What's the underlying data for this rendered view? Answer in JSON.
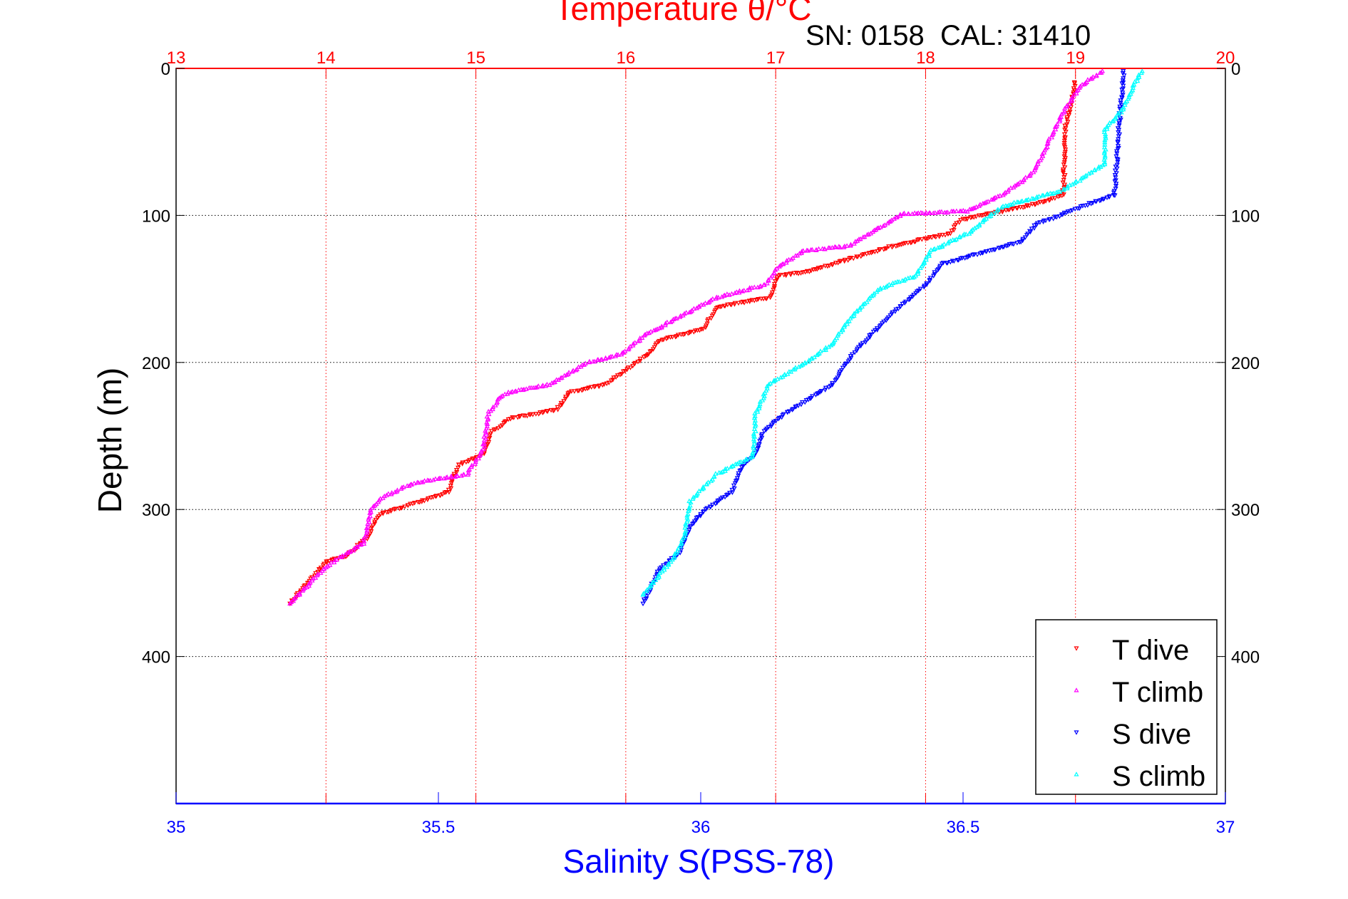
{
  "chart_data": {
    "type": "scatter",
    "title": "Temperature θ/°C",
    "subtitle": "SN: 0158  CAL: 31410",
    "ylabel": "Depth (m)",
    "xlabel": "Salinity S(PSS-78)",
    "ylim": [
      0,
      500
    ],
    "y_reversed": true,
    "yticks": [
      0,
      100,
      200,
      300,
      400
    ],
    "ytick_labels": [
      "0",
      "100",
      "200",
      "300",
      "400"
    ],
    "temperature_axis": {
      "position": "top",
      "lim": [
        13,
        20
      ],
      "ticks": [
        "13",
        "14",
        "15",
        "16",
        "17",
        "18",
        "19",
        "20"
      ],
      "color": "#ff0000"
    },
    "salinity_axis": {
      "position": "bottom",
      "lim": [
        35,
        37
      ],
      "ticks": [
        "35",
        "35.5",
        "36",
        "36.5",
        "37"
      ],
      "color": "#0000ff"
    },
    "grid": true,
    "legend_position": "bottom-right",
    "series": [
      {
        "name": "T dive",
        "axis": "temperature",
        "color": "#ff0000",
        "marker": "triangle-down",
        "points": [
          [
            19.0,
            9
          ],
          [
            18.93,
            42
          ],
          [
            18.92,
            86
          ],
          [
            18.74,
            92
          ],
          [
            18.23,
            103
          ],
          [
            18.17,
            112
          ],
          [
            17.77,
            121
          ],
          [
            17.48,
            130
          ],
          [
            17.22,
            138
          ],
          [
            17.02,
            141
          ],
          [
            16.96,
            156
          ],
          [
            16.61,
            162
          ],
          [
            16.52,
            177
          ],
          [
            16.23,
            185
          ],
          [
            16.15,
            194
          ],
          [
            16.03,
            203
          ],
          [
            15.86,
            215
          ],
          [
            15.63,
            220
          ],
          [
            15.54,
            232
          ],
          [
            15.23,
            238
          ],
          [
            15.11,
            247
          ],
          [
            15.05,
            262
          ],
          [
            14.88,
            270
          ],
          [
            14.82,
            288
          ],
          [
            14.65,
            294
          ],
          [
            14.36,
            303
          ],
          [
            14.27,
            320
          ],
          [
            14.13,
            332
          ],
          [
            14.01,
            335
          ],
          [
            13.9,
            347
          ],
          [
            13.76,
            364
          ]
        ]
      },
      {
        "name": "T climb",
        "axis": "temperature",
        "color": "#ff00ff",
        "marker": "triangle-up",
        "points": [
          [
            19.18,
            2
          ],
          [
            19.03,
            12
          ],
          [
            18.92,
            30
          ],
          [
            18.83,
            48
          ],
          [
            18.72,
            71
          ],
          [
            18.51,
            86
          ],
          [
            18.28,
            97
          ],
          [
            17.85,
            99
          ],
          [
            17.68,
            109
          ],
          [
            17.48,
            121
          ],
          [
            17.19,
            124
          ],
          [
            17.02,
            135
          ],
          [
            16.93,
            147
          ],
          [
            16.61,
            156
          ],
          [
            16.32,
            171
          ],
          [
            16.12,
            182
          ],
          [
            15.98,
            194
          ],
          [
            15.75,
            200
          ],
          [
            15.49,
            215
          ],
          [
            15.23,
            220
          ],
          [
            15.17,
            223
          ],
          [
            15.08,
            235
          ],
          [
            15.05,
            259
          ],
          [
            14.94,
            276
          ],
          [
            14.59,
            282
          ],
          [
            14.39,
            291
          ],
          [
            14.3,
            300
          ],
          [
            14.25,
            323
          ],
          [
            14.1,
            332
          ],
          [
            13.98,
            341
          ],
          [
            13.76,
            364
          ]
        ]
      },
      {
        "name": "S dive",
        "axis": "salinity",
        "color": "#0000ff",
        "marker": "triangle-down",
        "points": [
          [
            36.806,
            2
          ],
          [
            36.797,
            42
          ],
          [
            36.789,
            86
          ],
          [
            36.74,
            92
          ],
          [
            36.64,
            106
          ],
          [
            36.61,
            118
          ],
          [
            36.46,
            133
          ],
          [
            36.43,
            147
          ],
          [
            36.36,
            168
          ],
          [
            36.29,
            194
          ],
          [
            36.25,
            215
          ],
          [
            36.2,
            226
          ],
          [
            36.16,
            235
          ],
          [
            36.12,
            247
          ],
          [
            36.105,
            262
          ],
          [
            36.08,
            270
          ],
          [
            36.06,
            288
          ],
          [
            36.01,
            300
          ],
          [
            35.98,
            311
          ],
          [
            35.96,
            329
          ],
          [
            35.92,
            341
          ],
          [
            35.89,
            364
          ]
        ]
      },
      {
        "name": "S climb",
        "axis": "salinity",
        "color": "#00ffff",
        "marker": "triangle-up",
        "points": [
          [
            36.84,
            2
          ],
          [
            36.8,
            30
          ],
          [
            36.77,
            42
          ],
          [
            36.77,
            65
          ],
          [
            36.69,
            83
          ],
          [
            36.575,
            94
          ],
          [
            36.51,
            112
          ],
          [
            36.44,
            124
          ],
          [
            36.41,
            141
          ],
          [
            36.34,
            150
          ],
          [
            36.29,
            168
          ],
          [
            36.25,
            188
          ],
          [
            36.2,
            200
          ],
          [
            36.13,
            215
          ],
          [
            36.105,
            235
          ],
          [
            36.1,
            264
          ],
          [
            36.03,
            276
          ],
          [
            35.98,
            294
          ],
          [
            35.97,
            317
          ],
          [
            35.95,
            332
          ],
          [
            35.89,
            358
          ]
        ]
      }
    ]
  }
}
